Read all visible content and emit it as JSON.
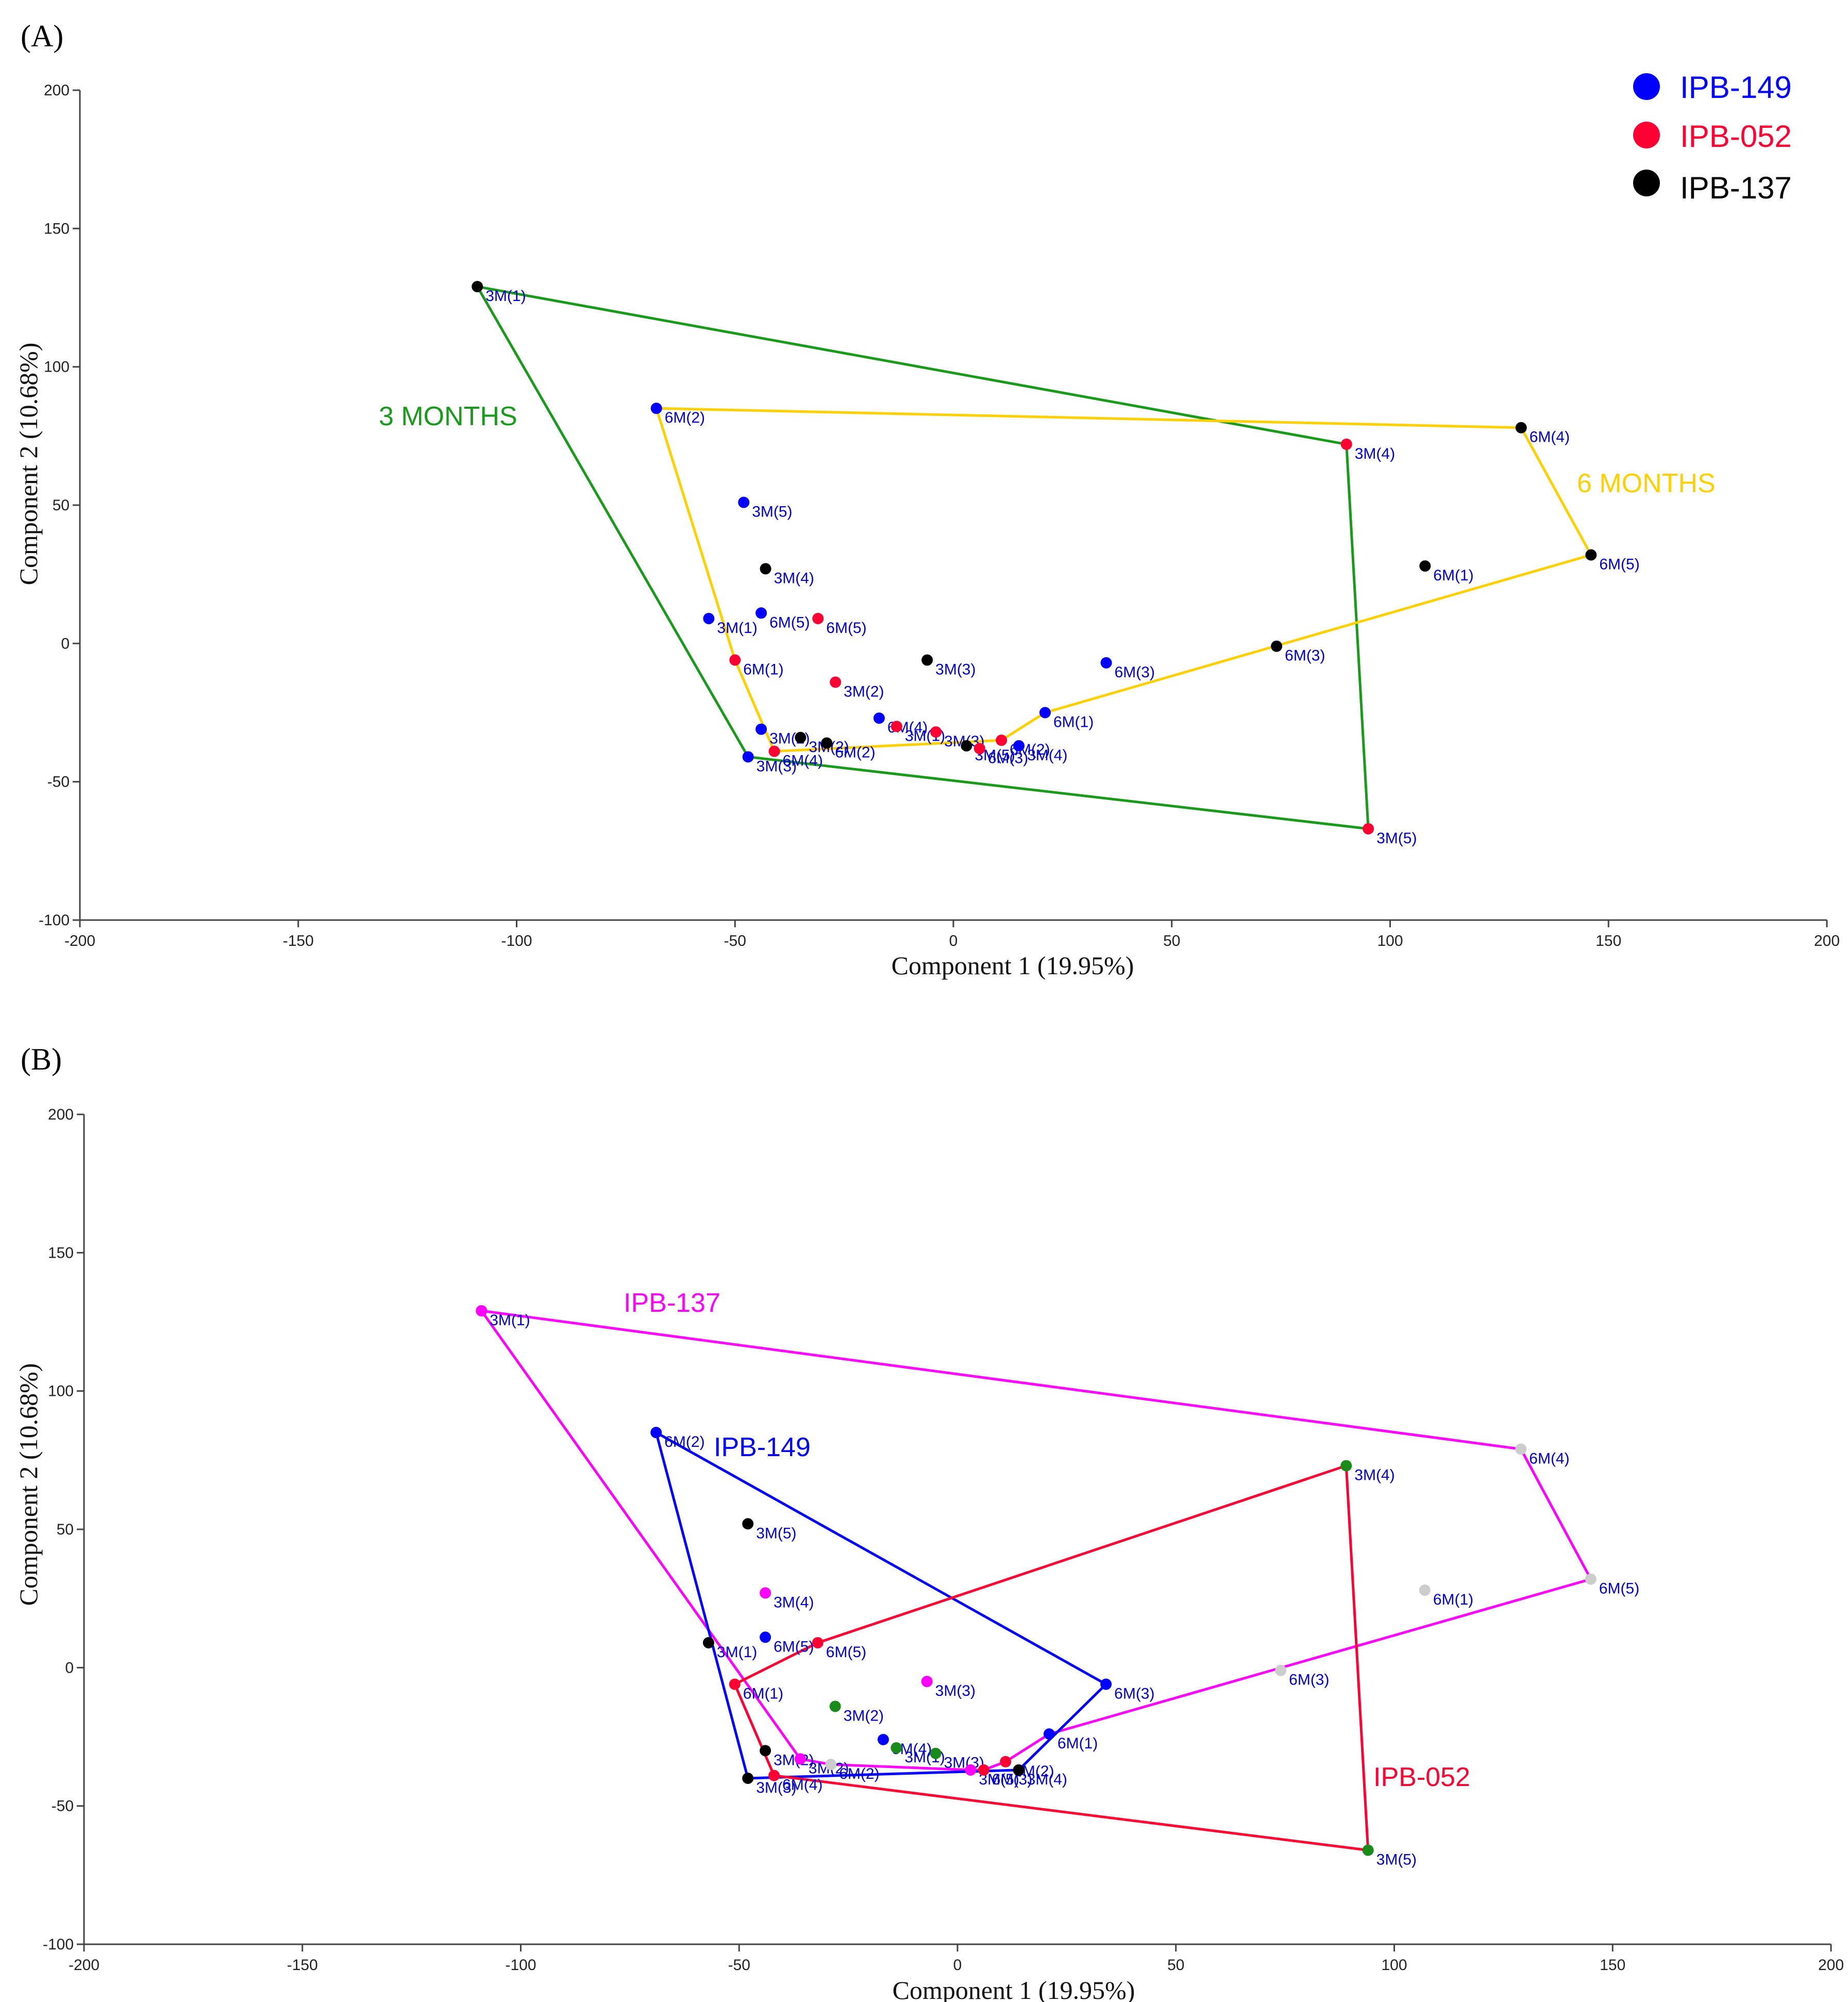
{
  "chart_data": [
    {
      "type": "scatter",
      "panel_label": "(A)",
      "xlabel": "Component 1 (19.95%)",
      "ylabel": "Component 2 (10.68%)",
      "xlim": [
        -200,
        200
      ],
      "ylim": [
        -100,
        200
      ],
      "xticks": [
        -200,
        -150,
        -100,
        -50,
        0,
        50,
        100,
        150,
        200
      ],
      "yticks": [
        -100,
        -50,
        0,
        50,
        100,
        150,
        200
      ],
      "legend": [
        {
          "name": "IPB-149",
          "color": "#0000ff"
        },
        {
          "name": "IPB-052",
          "color": "#ff0033"
        },
        {
          "name": "IPB-137",
          "color": "#000000"
        }
      ],
      "points": [
        {
          "label": "3M(1)",
          "x": -109,
          "y": 129,
          "color": "#000000"
        },
        {
          "label": "6M(2)",
          "x": -68,
          "y": 85,
          "color": "#0000ff"
        },
        {
          "label": "3M(5)",
          "x": -48,
          "y": 51,
          "color": "#0000ff"
        },
        {
          "label": "3M(4)",
          "x": -43,
          "y": 27,
          "color": "#000000"
        },
        {
          "label": "3M(1)",
          "x": -56,
          "y": 9,
          "color": "#0000ff"
        },
        {
          "label": "6M(5)",
          "x": -44,
          "y": 11,
          "color": "#0000ff"
        },
        {
          "label": "6M(5)",
          "x": -31,
          "y": 9,
          "color": "#ff0033"
        },
        {
          "label": "6M(1)",
          "x": -50,
          "y": -6,
          "color": "#ff0033"
        },
        {
          "label": "3M(2)",
          "x": -27,
          "y": -14,
          "color": "#ff0033"
        },
        {
          "label": "3M(3)",
          "x": -6,
          "y": -6,
          "color": "#000000"
        },
        {
          "label": "6M(3)",
          "x": 35,
          "y": -7,
          "color": "#0000ff"
        },
        {
          "label": "6M(1)",
          "x": 21,
          "y": -25,
          "color": "#0000ff"
        },
        {
          "label": "6M(4)",
          "x": -17,
          "y": -27,
          "color": "#0000ff"
        },
        {
          "label": "3M(1)",
          "x": -13,
          "y": -30,
          "color": "#ff0033"
        },
        {
          "label": "3M(3)",
          "x": -4,
          "y": -32,
          "color": "#ff0033"
        },
        {
          "label": "6M(2)",
          "x": 11,
          "y": -35,
          "color": "#ff0033"
        },
        {
          "label": "3M(2)",
          "x": -44,
          "y": -31,
          "color": "#0000ff"
        },
        {
          "label": "3M(2)",
          "x": -35,
          "y": -34,
          "color": "#000000"
        },
        {
          "label": "6M(2)",
          "x": -29,
          "y": -36,
          "color": "#000000"
        },
        {
          "label": "3M(3)",
          "x": -47,
          "y": -41,
          "color": "#0000ff"
        },
        {
          "label": "6M(4)",
          "x": -41,
          "y": -39,
          "color": "#ff0033"
        },
        {
          "label": "3M(5)",
          "x": 3,
          "y": -37,
          "color": "#000000"
        },
        {
          "label": "6M(3)",
          "x": 6,
          "y": -38,
          "color": "#ff0033"
        },
        {
          "label": "3M(4)",
          "x": 15,
          "y": -37,
          "color": "#0000ff"
        },
        {
          "label": "6M(3)",
          "x": 74,
          "y": -1,
          "color": "#000000"
        },
        {
          "label": "3M(4)",
          "x": 90,
          "y": 72,
          "color": "#ff0033"
        },
        {
          "label": "3M(5)",
          "x": 95,
          "y": -67,
          "color": "#ff0033"
        },
        {
          "label": "6M(4)",
          "x": 130,
          "y": 78,
          "color": "#000000"
        },
        {
          "label": "6M(5)",
          "x": 146,
          "y": 32,
          "color": "#000000"
        },
        {
          "label": "6M(1)",
          "x": 108,
          "y": 28,
          "color": "#000000"
        }
      ],
      "hulls": [
        {
          "name": "3 MONTHS",
          "color": "#1a9a1a",
          "points": [
            [
              -109,
              129
            ],
            [
              90,
              72
            ],
            [
              95,
              -67
            ],
            [
              -47,
              -41
            ]
          ]
        },
        {
          "name": "6 MONTHS",
          "color": "#ffd000",
          "points": [
            [
              -68,
              85
            ],
            [
              130,
              78
            ],
            [
              146,
              32
            ],
            [
              21,
              -25
            ],
            [
              11,
              -35
            ],
            [
              -41,
              -39
            ],
            [
              -50,
              -6
            ]
          ]
        }
      ]
    },
    {
      "type": "scatter",
      "panel_label": "(B)",
      "xlabel": "Component 1 (19.95%)",
      "ylabel": "Component 2 (10.68%)",
      "xlim": [
        -200,
        200
      ],
      "ylim": [
        -100,
        200
      ],
      "xticks": [
        -200,
        -150,
        -100,
        -50,
        0,
        50,
        100,
        150,
        200
      ],
      "yticks": [
        -100,
        -50,
        0,
        50,
        100,
        150,
        200
      ],
      "points": [
        {
          "label": "3M(1)",
          "x": -109,
          "y": 129,
          "color": "#ff00ff"
        },
        {
          "label": "6M(2)",
          "x": -69,
          "y": 85,
          "color": "#0000ff"
        },
        {
          "label": "3M(5)",
          "x": -48,
          "y": 52,
          "color": "#000000"
        },
        {
          "label": "3M(4)",
          "x": -44,
          "y": 27,
          "color": "#ff00ff"
        },
        {
          "label": "6M(5)",
          "x": -44,
          "y": 11,
          "color": "#0000ff"
        },
        {
          "label": "3M(1)",
          "x": -57,
          "y": 9,
          "color": "#000000"
        },
        {
          "label": "6M(5)",
          "x": -32,
          "y": 9,
          "color": "#ff0033"
        },
        {
          "label": "6M(1)",
          "x": -51,
          "y": -6,
          "color": "#ff0033"
        },
        {
          "label": "3M(3)",
          "x": -7,
          "y": -5,
          "color": "#ff00ff"
        },
        {
          "label": "3M(2)",
          "x": -28,
          "y": -14,
          "color": "#1a8a1a"
        },
        {
          "label": "6M(3)",
          "x": 34,
          "y": -6,
          "color": "#0000ff"
        },
        {
          "label": "6M(1)",
          "x": 21,
          "y": -24,
          "color": "#0000ff"
        },
        {
          "label": "6M(4)",
          "x": -17,
          "y": -26,
          "color": "#0000ff"
        },
        {
          "label": "3M(1)",
          "x": -14,
          "y": -29,
          "color": "#1a8a1a"
        },
        {
          "label": "3M(3)",
          "x": -5,
          "y": -31,
          "color": "#1a8a1a"
        },
        {
          "label": "6M(2)",
          "x": 11,
          "y": -34,
          "color": "#ff0033"
        },
        {
          "label": "3M(2)",
          "x": -44,
          "y": -30,
          "color": "#000000"
        },
        {
          "label": "3M(2)",
          "x": -36,
          "y": -33,
          "color": "#ff00ff"
        },
        {
          "label": "6M(2)",
          "x": -29,
          "y": -35,
          "color": "#cccccc"
        },
        {
          "label": "3M(3)",
          "x": -48,
          "y": -40,
          "color": "#000000"
        },
        {
          "label": "6M(4)",
          "x": -42,
          "y": -39,
          "color": "#ff0033"
        },
        {
          "label": "3M(5)",
          "x": 3,
          "y": -37,
          "color": "#ff00ff"
        },
        {
          "label": "6M(3)",
          "x": 6,
          "y": -37,
          "color": "#ff0033"
        },
        {
          "label": "3M(4)",
          "x": 14,
          "y": -37,
          "color": "#000000"
        },
        {
          "label": "6M(3)",
          "x": 74,
          "y": -1,
          "color": "#cccccc"
        },
        {
          "label": "3M(4)",
          "x": 89,
          "y": 73,
          "color": "#1a8a1a"
        },
        {
          "label": "3M(5)",
          "x": 94,
          "y": -66,
          "color": "#1a8a1a"
        },
        {
          "label": "6M(4)",
          "x": 129,
          "y": 79,
          "color": "#cccccc"
        },
        {
          "label": "6M(5)",
          "x": 145,
          "y": 32,
          "color": "#cccccc"
        },
        {
          "label": "6M(1)",
          "x": 107,
          "y": 28,
          "color": "#cccccc"
        }
      ],
      "hulls": [
        {
          "name": "IPB-137",
          "color": "#ff00ff",
          "points": [
            [
              -109,
              129
            ],
            [
              129,
              79
            ],
            [
              145,
              32
            ],
            [
              21,
              -24
            ],
            [
              11,
              -34
            ],
            [
              6,
              -37
            ],
            [
              3,
              -37
            ],
            [
              -29,
              -35
            ],
            [
              -36,
              -33
            ]
          ]
        },
        {
          "name": "IPB-149",
          "color": "#0000ff",
          "points": [
            [
              -69,
              85
            ],
            [
              34,
              -6
            ],
            [
              14,
              -37
            ],
            [
              -48,
              -40
            ]
          ]
        },
        {
          "name": "IPB-052",
          "color": "#ff0033",
          "points": [
            [
              -51,
              -6
            ],
            [
              -32,
              9
            ],
            [
              89,
              73
            ],
            [
              94,
              -66
            ],
            [
              -42,
              -39
            ]
          ]
        }
      ]
    }
  ]
}
